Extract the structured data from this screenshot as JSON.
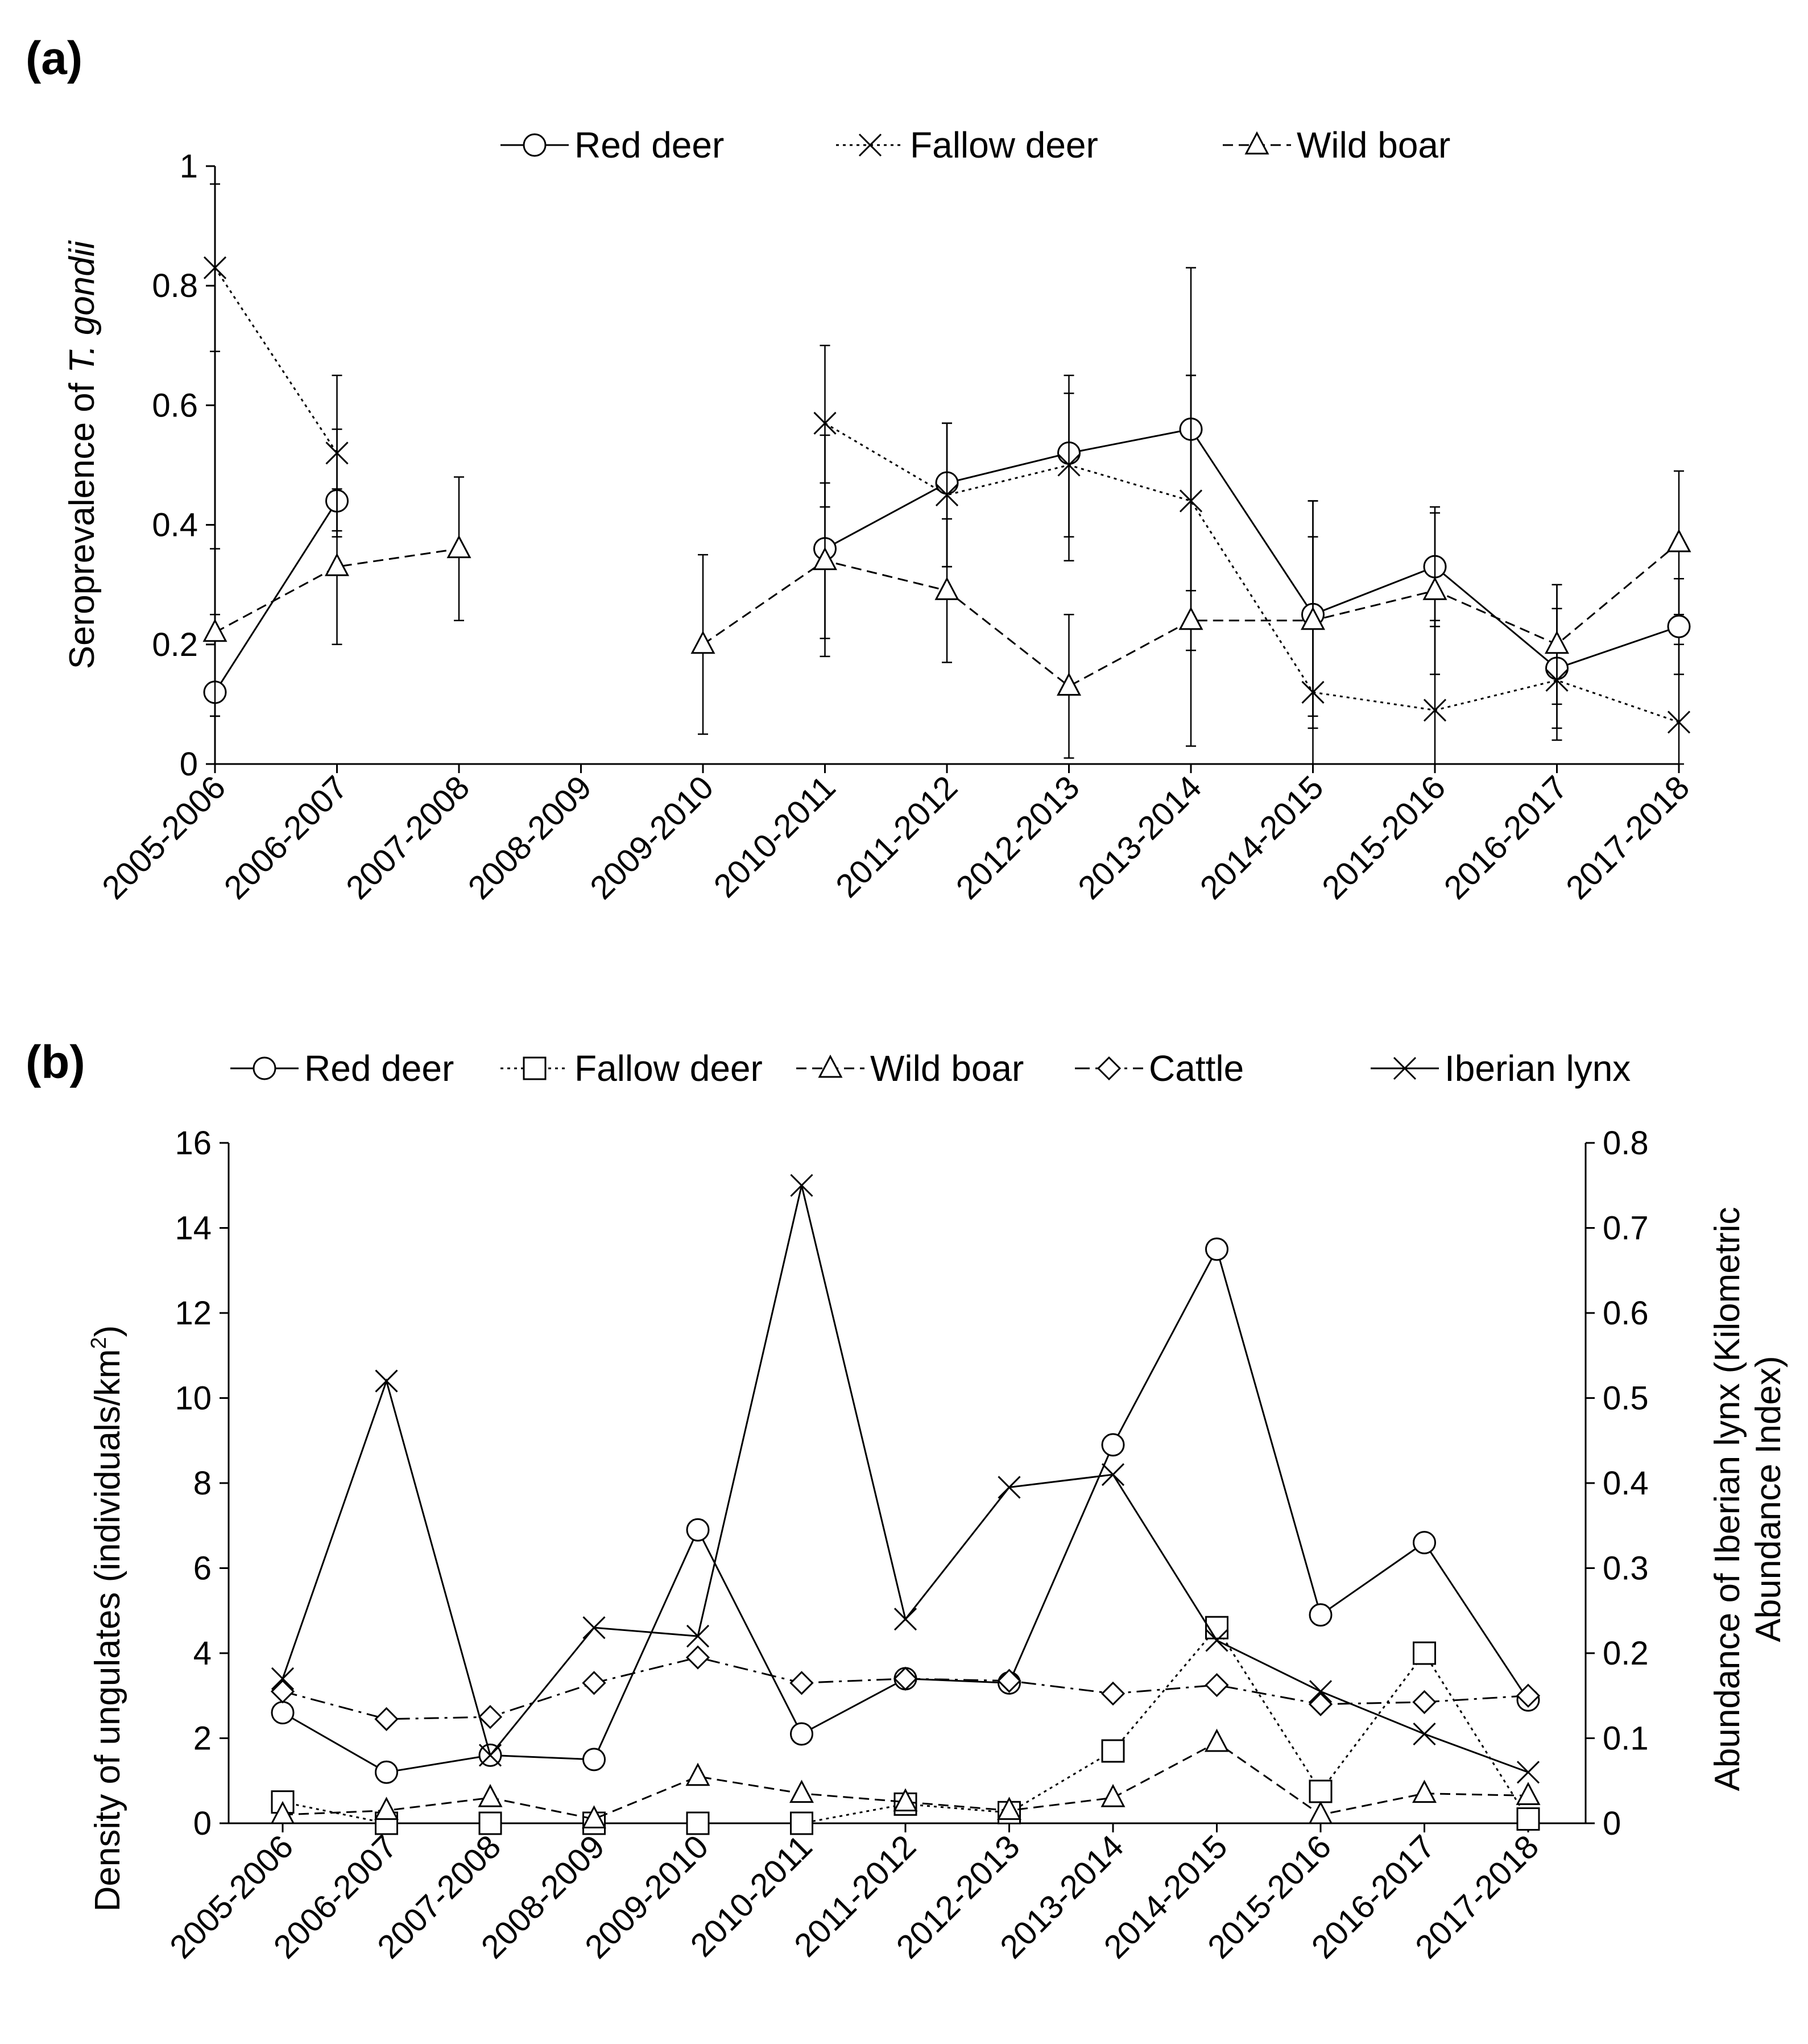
{
  "chart_data": [
    {
      "panel_label": "(a)",
      "type": "line",
      "categories": [
        "2005-2006",
        "2006-2007",
        "2007-2008",
        "2008-2009",
        "2009-2010",
        "2010-2011",
        "2011-2012",
        "2012-2013",
        "2013-2014",
        "2014-2015",
        "2015-2016",
        "2016-2017",
        "2017-2018"
      ],
      "ylabel_prefix": "Seroprevalence of ",
      "ylabel_italic": "T. gondii",
      "ylim": [
        0,
        1
      ],
      "yticks": [
        "0",
        "0.2",
        "0.4",
        "0.6",
        "0.8",
        "1"
      ],
      "legend_position": "top",
      "series": [
        {
          "name": "Red deer",
          "marker": "circle",
          "dash": "solid",
          "values": [
            0.12,
            0.44,
            null,
            null,
            null,
            0.36,
            0.47,
            0.52,
            0.56,
            0.25,
            0.33,
            0.16,
            0.23
          ],
          "err_low": [
            0.08,
            0.38,
            null,
            null,
            null,
            0.21,
            0.33,
            0.38,
            0.29,
            0.08,
            0.23,
            0.04,
            0.15
          ],
          "err_high": [
            0.25,
            0.56,
            null,
            null,
            null,
            0.55,
            0.57,
            0.62,
            0.65,
            0.44,
            0.43,
            0.3,
            0.31
          ]
        },
        {
          "name": "Fallow deer",
          "marker": "x",
          "dash": "dotted",
          "values": [
            0.83,
            0.52,
            null,
            null,
            null,
            0.57,
            0.45,
            0.5,
            0.44,
            0.12,
            0.09,
            0.14,
            0.07
          ],
          "err_low": [
            0.36,
            0.39,
            null,
            null,
            null,
            0.43,
            0.33,
            0.34,
            0.19,
            0.0,
            0.0,
            0.06,
            0.0
          ],
          "err_high": [
            0.97,
            0.65,
            null,
            null,
            null,
            0.7,
            0.57,
            0.65,
            0.65,
            0.38,
            0.24,
            0.26,
            0.2
          ]
        },
        {
          "name": "Wild boar",
          "marker": "triangle",
          "dash": "dashed",
          "values": [
            0.22,
            0.33,
            0.36,
            null,
            0.2,
            0.34,
            0.29,
            0.13,
            0.24,
            0.24,
            0.29,
            0.2,
            0.37
          ],
          "err_low": [
            0.08,
            0.2,
            0.24,
            null,
            0.05,
            0.18,
            0.17,
            0.01,
            0.03,
            0.06,
            0.15,
            0.1,
            0.25
          ],
          "err_high": [
            0.69,
            0.46,
            0.48,
            null,
            0.35,
            0.47,
            0.41,
            0.25,
            0.83,
            0.44,
            0.42,
            0.3,
            0.49
          ]
        }
      ]
    },
    {
      "panel_label": "(b)",
      "type": "line",
      "categories": [
        "2005-2006",
        "2006-2007",
        "2007-2008",
        "2008-2009",
        "2009-2010",
        "2010-2011",
        "2011-2012",
        "2012-2013",
        "2013-2014",
        "2014-2015",
        "2015-2016",
        "2016-2017",
        "2017-2018"
      ],
      "ylabel_main": "Density of ungulates (individuals/km",
      "ylabel_sup": "2",
      "ylabel_end": ")",
      "y2label_line1": "Abundance of Iberian lynx (Kilometric",
      "y2label_line2": "Abundance Index)",
      "ylim": [
        0,
        16
      ],
      "y2lim": [
        0,
        0.8
      ],
      "yticks": [
        "0",
        "2",
        "4",
        "6",
        "8",
        "10",
        "12",
        "14",
        "16"
      ],
      "y2ticks": [
        "0",
        "0.1",
        "0.2",
        "0.3",
        "0.4",
        "0.5",
        "0.6",
        "0.7",
        "0.8"
      ],
      "legend_position": "top",
      "series": [
        {
          "name": "Red deer",
          "marker": "circle",
          "dash": "solid",
          "axis": "left",
          "values": [
            2.6,
            1.2,
            1.6,
            1.5,
            6.9,
            2.1,
            3.4,
            3.3,
            8.9,
            13.5,
            4.9,
            6.6,
            2.9
          ]
        },
        {
          "name": "Fallow deer",
          "marker": "square",
          "dash": "dotted",
          "axis": "left",
          "values": [
            0.5,
            0.0,
            0.0,
            0.0,
            0.0,
            0.0,
            0.45,
            0.25,
            1.7,
            4.6,
            0.75,
            4.0,
            0.1
          ]
        },
        {
          "name": "Wild boar",
          "marker": "triangle",
          "dash": "dashed",
          "axis": "left",
          "values": [
            0.2,
            0.3,
            0.6,
            0.1,
            1.1,
            0.7,
            0.5,
            0.3,
            0.6,
            1.9,
            0.2,
            0.7,
            0.65
          ]
        },
        {
          "name": "Cattle",
          "marker": "diamond",
          "dash": "dashdot",
          "axis": "left",
          "values": [
            3.1,
            2.45,
            2.5,
            3.3,
            3.9,
            3.3,
            3.4,
            3.35,
            3.05,
            3.25,
            2.8,
            2.85,
            3.0
          ]
        },
        {
          "name": "Iberian lynx",
          "marker": "x",
          "dash": "solid",
          "axis": "right",
          "values": [
            0.17,
            0.52,
            0.08,
            0.23,
            0.22,
            0.75,
            0.24,
            0.395,
            0.41,
            0.215,
            0.155,
            0.105,
            0.06
          ]
        }
      ]
    }
  ]
}
